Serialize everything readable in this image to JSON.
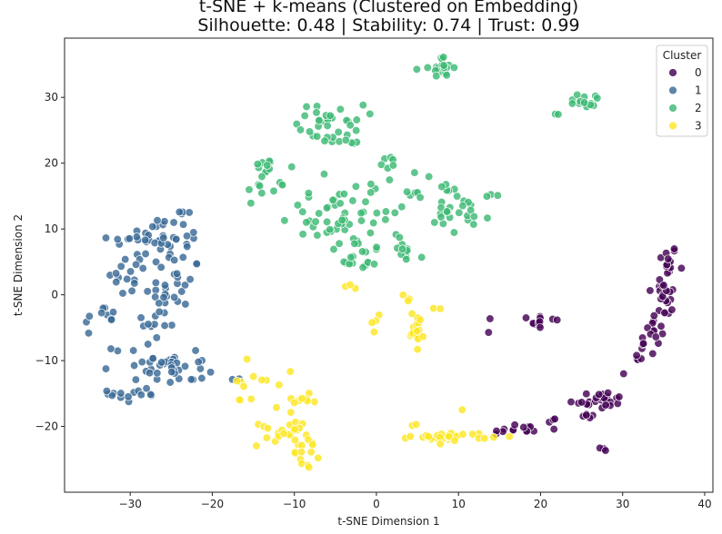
{
  "chart_data": {
    "type": "scatter",
    "title": "t-SNE + k-means (Clustered on Embedding)",
    "subtitle": "Silhouette: 0.48 | Stability: 0.74 | Trust: 0.99",
    "xlabel": "t-SNE Dimension 1",
    "ylabel": "t-SNE Dimension 2",
    "xlim": [
      -38,
      41
    ],
    "ylim": [
      -30,
      39
    ],
    "xticks": [
      -30,
      -20,
      -10,
      0,
      10,
      20,
      30,
      40
    ],
    "yticks": [
      -20,
      -10,
      0,
      10,
      20,
      30
    ],
    "grid": false,
    "legend": {
      "title": "Cluster",
      "placement": "top-right"
    },
    "series": [
      {
        "name": "0",
        "color": "#440154",
        "clusters": [
          {
            "cx": 35.5,
            "cy": 5,
            "sx": 0.6,
            "sy": 1.3,
            "n": 14
          },
          {
            "cx": 35,
            "cy": 0,
            "sx": 0.9,
            "sy": 1.6,
            "n": 16
          },
          {
            "cx": 34.5,
            "cy": -4,
            "sx": 1.0,
            "sy": 1.2,
            "n": 12
          },
          {
            "cx": 33.5,
            "cy": -7.5,
            "sx": 0.8,
            "sy": 0.9,
            "n": 8
          },
          {
            "cx": 32.5,
            "cy": -10,
            "sx": 0.6,
            "sy": 0.6,
            "n": 4
          },
          {
            "cx": 30.5,
            "cy": -12,
            "sx": 0.2,
            "sy": 0.2,
            "n": 1
          },
          {
            "cx": 27,
            "cy": -16,
            "sx": 1.8,
            "sy": 0.7,
            "n": 26
          },
          {
            "cx": 25.5,
            "cy": -18,
            "sx": 0.7,
            "sy": 0.4,
            "n": 5
          },
          {
            "cx": 28,
            "cy": -23.5,
            "sx": 0.3,
            "sy": 0.2,
            "n": 3
          },
          {
            "cx": 19.5,
            "cy": -4,
            "sx": 1.4,
            "sy": 0.8,
            "n": 12
          },
          {
            "cx": 13.7,
            "cy": -5.8,
            "sx": 0.1,
            "sy": 0.1,
            "n": 1
          },
          {
            "cx": 17,
            "cy": -20.5,
            "sx": 2.0,
            "sy": 0.5,
            "n": 14
          },
          {
            "cx": 21.5,
            "cy": -19,
            "sx": 0.4,
            "sy": 0.2,
            "n": 3
          }
        ]
      },
      {
        "name": "1",
        "color": "#3b6a96",
        "clusters": [
          {
            "cx": -28,
            "cy": 8,
            "sx": 2.3,
            "sy": 2.2,
            "n": 28
          },
          {
            "cx": -24.5,
            "cy": 9,
            "sx": 1.6,
            "sy": 2.5,
            "n": 22
          },
          {
            "cx": -30,
            "cy": 2.5,
            "sx": 1.5,
            "sy": 1.4,
            "n": 14
          },
          {
            "cx": -24.5,
            "cy": 1,
            "sx": 1.6,
            "sy": 3.0,
            "n": 24
          },
          {
            "cx": -33.5,
            "cy": -3.5,
            "sx": 1.0,
            "sy": 1.0,
            "n": 10
          },
          {
            "cx": -27,
            "cy": -4,
            "sx": 1.2,
            "sy": 1.5,
            "n": 10
          },
          {
            "cx": -28,
            "cy": -10,
            "sx": 2.0,
            "sy": 1.5,
            "n": 22
          },
          {
            "cx": -24.5,
            "cy": -11.5,
            "sx": 1.8,
            "sy": 1.3,
            "n": 22
          },
          {
            "cx": -29,
            "cy": -15,
            "sx": 1.8,
            "sy": 0.8,
            "n": 14
          },
          {
            "cx": -17,
            "cy": -12.8,
            "sx": 0.3,
            "sy": 0.2,
            "n": 2
          }
        ]
      },
      {
        "name": "2",
        "color": "#3dba74",
        "clusters": [
          {
            "cx": 8,
            "cy": 34.5,
            "sx": 0.7,
            "sy": 0.8,
            "n": 18
          },
          {
            "cx": 5,
            "cy": 34.5,
            "sx": 0.1,
            "sy": 0.1,
            "n": 1
          },
          {
            "cx": 25.5,
            "cy": 29.5,
            "sx": 1.2,
            "sy": 0.6,
            "n": 14
          },
          {
            "cx": 22,
            "cy": 27.5,
            "sx": 0.2,
            "sy": 0.2,
            "n": 2
          },
          {
            "cx": -5.5,
            "cy": 26.5,
            "sx": 2.0,
            "sy": 1.2,
            "n": 28
          },
          {
            "cx": -5,
            "cy": 23.5,
            "sx": 1.5,
            "sy": 0.4,
            "n": 10
          },
          {
            "cx": -14,
            "cy": 17.5,
            "sx": 0.8,
            "sy": 2.0,
            "n": 16
          },
          {
            "cx": -11,
            "cy": 17,
            "sx": 1.0,
            "sy": 1.5,
            "n": 4
          },
          {
            "cx": -6,
            "cy": 12,
            "sx": 3.0,
            "sy": 2.5,
            "n": 40
          },
          {
            "cx": 1,
            "cy": 12,
            "sx": 2.5,
            "sy": 3.0,
            "n": 28
          },
          {
            "cx": 2,
            "cy": 20.2,
            "sx": 0.6,
            "sy": 0.6,
            "n": 6
          },
          {
            "cx": -2,
            "cy": 6,
            "sx": 2.0,
            "sy": 1.2,
            "n": 16
          },
          {
            "cx": 3.5,
            "cy": 6.5,
            "sx": 1.0,
            "sy": 1.2,
            "n": 8
          },
          {
            "cx": 10,
            "cy": 12,
            "sx": 2.0,
            "sy": 1.5,
            "n": 24
          },
          {
            "cx": 8.5,
            "cy": 16,
            "sx": 1.2,
            "sy": 0.6,
            "n": 5
          },
          {
            "cx": 14,
            "cy": 15,
            "sx": 0.4,
            "sy": 0.5,
            "n": 3
          }
        ]
      },
      {
        "name": "3",
        "color": "#fde725",
        "clusters": [
          {
            "cx": 5,
            "cy": -5,
            "sx": 0.4,
            "sy": 1.2,
            "n": 20
          },
          {
            "cx": 3.8,
            "cy": -0.5,
            "sx": 0.3,
            "sy": 0.3,
            "n": 3
          },
          {
            "cx": 0,
            "cy": -4,
            "sx": 0.3,
            "sy": 1.0,
            "n": 4
          },
          {
            "cx": -3,
            "cy": 1.3,
            "sx": 0.5,
            "sy": 0.3,
            "n": 3
          },
          {
            "cx": 7.5,
            "cy": -2.5,
            "sx": 0.4,
            "sy": 0.4,
            "n": 2
          },
          {
            "cx": -15,
            "cy": -15,
            "sx": 1.5,
            "sy": 2.5,
            "n": 14
          },
          {
            "cx": -11.5,
            "cy": -20.5,
            "sx": 1.5,
            "sy": 1.3,
            "n": 22
          },
          {
            "cx": -8.5,
            "cy": -24,
            "sx": 0.9,
            "sy": 1.0,
            "n": 12
          },
          {
            "cx": -9,
            "cy": -16,
            "sx": 1.0,
            "sy": 0.7,
            "n": 8
          },
          {
            "cx": 9,
            "cy": -21.5,
            "sx": 2.4,
            "sy": 0.3,
            "n": 30
          },
          {
            "cx": 5,
            "cy": -20,
            "sx": 0.4,
            "sy": 0.2,
            "n": 2
          },
          {
            "cx": 10.5,
            "cy": -17.5,
            "sx": 0.2,
            "sy": 0.2,
            "n": 1
          },
          {
            "cx": -8,
            "cy": -26,
            "sx": 0.2,
            "sy": 0.2,
            "n": 1
          }
        ]
      }
    ]
  }
}
